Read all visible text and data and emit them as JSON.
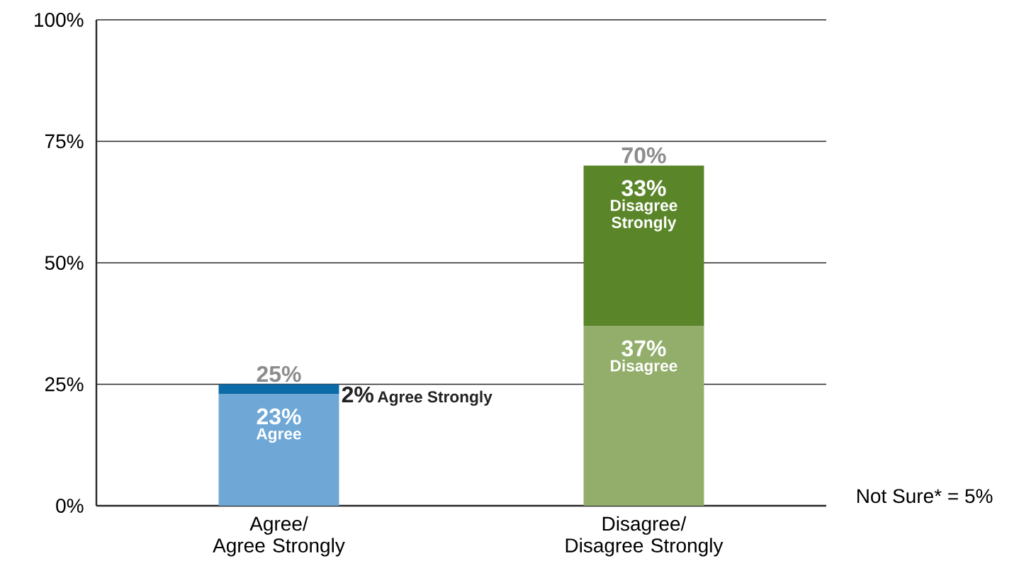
{
  "chart_data": {
    "type": "bar",
    "stacked": true,
    "categories": [
      "Agree/\nAgree Strongly",
      "Disagree/\nDisagree Strongly"
    ],
    "series": [
      {
        "name": "Agree",
        "color": "#6fa8d6",
        "values": [
          23,
          null
        ],
        "value_labels": [
          "23%",
          null
        ]
      },
      {
        "name": "Agree Strongly",
        "color": "#0b6aa8",
        "values": [
          2,
          null
        ],
        "value_labels": [
          "2%",
          null
        ]
      },
      {
        "name": "Disagree",
        "color": "#93ae6b",
        "values": [
          null,
          37
        ],
        "value_labels": [
          null,
          "37%"
        ]
      },
      {
        "name": "Disagree Strongly",
        "color": "#5a8529",
        "values": [
          null,
          33
        ],
        "value_labels": [
          null,
          "33%"
        ]
      }
    ],
    "totals": [
      "25%",
      "70%"
    ],
    "ylim": [
      0,
      100
    ],
    "yticks": [
      {
        "value": 0,
        "label": "0%"
      },
      {
        "value": 25,
        "label": "25%"
      },
      {
        "value": 50,
        "label": "50%"
      },
      {
        "value": 75,
        "label": "75%"
      },
      {
        "value": 100,
        "label": "100%"
      }
    ],
    "grid": "y",
    "legend": false,
    "annotations": [
      "Not Sure* = 5%"
    ]
  }
}
